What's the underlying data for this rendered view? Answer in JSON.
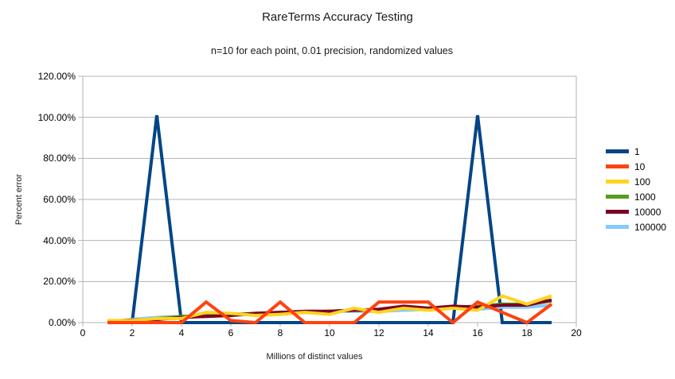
{
  "chart_data": {
    "type": "line",
    "title": "RareTerms Accuracy Testing",
    "subtitle": "n=10 for each point, 0.01 precision, randomized values",
    "xlabel": "Millions of distinct values",
    "ylabel": "Percent error",
    "xlim": [
      0,
      20
    ],
    "ylim": [
      0,
      120
    ],
    "grid": true,
    "legend_position": "right",
    "x_ticks": [
      0,
      2,
      4,
      6,
      8,
      10,
      12,
      14,
      16,
      18,
      20
    ],
    "y_ticks": [
      {
        "value": 0,
        "label": "0.00%"
      },
      {
        "value": 20,
        "label": "20.00%"
      },
      {
        "value": 40,
        "label": "40.00%"
      },
      {
        "value": 60,
        "label": "60.00%"
      },
      {
        "value": 80,
        "label": "80.00%"
      },
      {
        "value": 100,
        "label": "100.00%"
      },
      {
        "value": 120,
        "label": "120.00%"
      }
    ],
    "x": [
      1,
      2,
      3,
      4,
      5,
      6,
      7,
      8,
      9,
      10,
      11,
      12,
      13,
      14,
      15,
      16,
      17,
      18,
      19
    ],
    "series": [
      {
        "name": "1",
        "color": "#004586",
        "values": [
          0,
          0,
          101,
          0,
          0,
          0,
          0,
          0,
          0,
          0,
          0,
          0,
          0,
          0,
          0,
          101,
          0,
          0,
          0
        ]
      },
      {
        "name": "10",
        "color": "#ff420e",
        "values": [
          0,
          0,
          0,
          0,
          10,
          1,
          0,
          10,
          0,
          0,
          0,
          10,
          10,
          10,
          0,
          10,
          5,
          0,
          9
        ]
      },
      {
        "name": "100",
        "color": "#ffd320",
        "values": [
          1,
          1,
          2,
          2,
          5,
          4.5,
          3.5,
          4,
          5,
          4,
          7,
          5,
          7,
          6,
          7,
          6,
          13,
          9,
          13
        ]
      },
      {
        "name": "1000",
        "color": "#579d1c",
        "values": [
          0.5,
          1,
          2,
          3,
          3.5,
          4,
          4.5,
          5,
          5,
          5.5,
          6,
          6,
          7,
          7,
          7.5,
          8,
          9,
          9,
          10.5
        ]
      },
      {
        "name": "10000",
        "color": "#7e0021",
        "values": [
          0.7,
          1.2,
          1.5,
          2.5,
          3,
          3.5,
          4.5,
          5,
          5.5,
          5.5,
          6,
          6.5,
          8,
          7,
          8,
          7.5,
          8.5,
          8.5,
          11
        ]
      },
      {
        "name": "100000",
        "color": "#83caff",
        "values": [
          0.5,
          1.5,
          2.5,
          3,
          3,
          3.5,
          4,
          4.5,
          5,
          5.5,
          5.5,
          5.5,
          6,
          6.5,
          7,
          6.5,
          7.5,
          7.5,
          8.5
        ]
      }
    ],
    "draw_order": [
      "1",
      "100000",
      "1000",
      "10000",
      "100",
      "10"
    ],
    "grid_color": "#b3b3b3"
  }
}
